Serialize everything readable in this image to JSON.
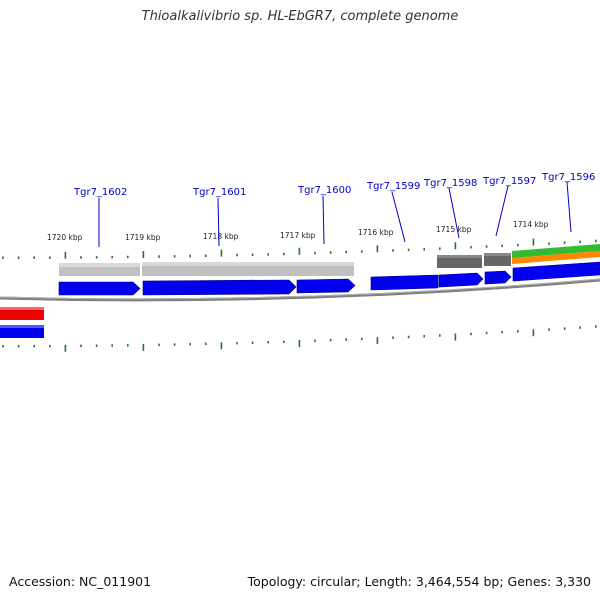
{
  "title": "Thioalkalivibrio sp. HL-EbGR7, complete genome",
  "footer": {
    "accession": "Accession: NC_011901",
    "topology": "Topology: circular; Length: 3,464,554 bp; Genes: 3,330"
  },
  "colors": {
    "cds": "#0000ee",
    "cds_outline": "#000088",
    "gene_track_light": "#c0c0c0",
    "gene_track_dark": "#666666",
    "green_feature": "#33bb33",
    "orange_feature": "#ff8800",
    "red_feature": "#ee0000",
    "backbone": "#888888",
    "tick": "#227722",
    "gene_label": "#0000cc"
  },
  "scale_labels": [
    "1720 kbp",
    "1719 kbp",
    "1718 kbp",
    "1717 kbp",
    "1716 kbp",
    "1715 kbp",
    "1714 kbp"
  ],
  "gene_labels": [
    "Tgr7_1602",
    "Tgr7_1601",
    "Tgr7_1600",
    "Tgr7_1599",
    "Tgr7_1598",
    "Tgr7_1597",
    "Tgr7_1596"
  ]
}
